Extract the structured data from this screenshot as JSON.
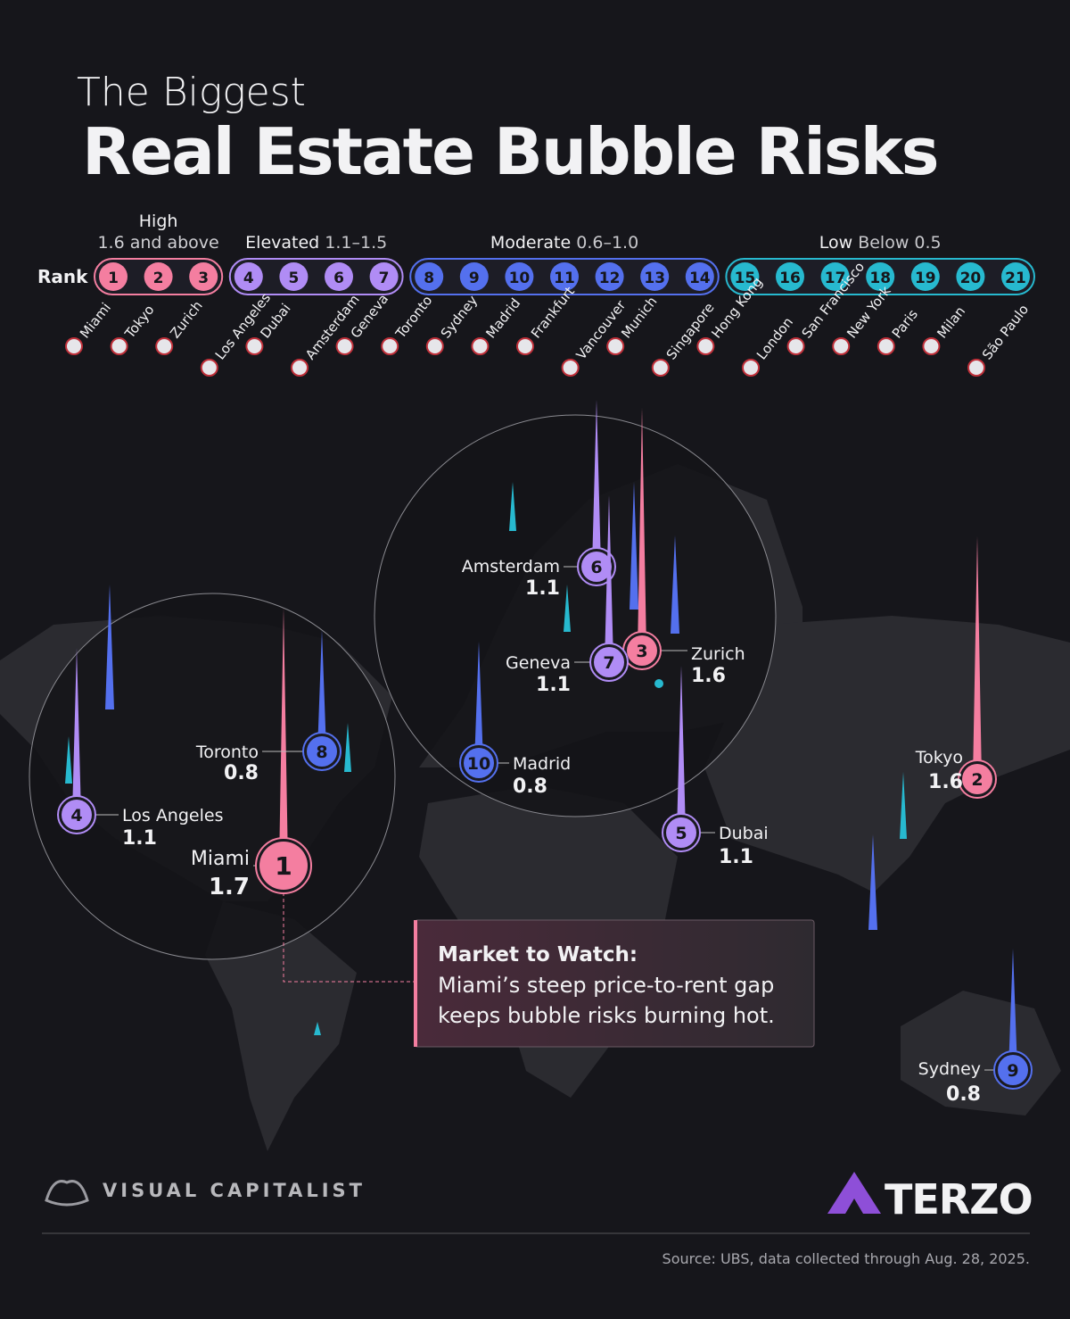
{
  "header": {
    "kicker": "The Biggest",
    "title": "Real Estate Bubble Risks"
  },
  "legend": {
    "rank_label": "Rank",
    "tiers": [
      {
        "name": "High",
        "range": "1.6 and above",
        "color": "#f47ea0",
        "ranks": [
          1,
          2,
          3
        ]
      },
      {
        "name": "Elevated",
        "range": "1.1–1.5",
        "color": "#b08cf5",
        "ranks": [
          4,
          5,
          6,
          7
        ]
      },
      {
        "name": "Moderate",
        "range": "0.6–1.0",
        "color": "#5470ee",
        "ranks": [
          8,
          9,
          10,
          11,
          12,
          13,
          14
        ]
      },
      {
        "name": "Low",
        "range": "Below 0.5",
        "color": "#27b9cf",
        "ranks": [
          15,
          16,
          17,
          18,
          19,
          20,
          21
        ]
      }
    ],
    "cities": [
      "Miami",
      "Tokyo",
      "Zurich",
      "Los Angeles",
      "Dubai",
      "Amsterdam",
      "Geneva",
      "Toronto",
      "Sydney",
      "Madrid",
      "Frankfurt",
      "Vancouver",
      "Munich",
      "Singapore",
      "Hong Kong",
      "London",
      "San Francisco",
      "New York",
      "Paris",
      "Milan",
      "São Paulo"
    ]
  },
  "callouts": [
    {
      "rank": 1,
      "city": "Miami",
      "score": 1.7
    },
    {
      "rank": 2,
      "city": "Tokyo",
      "score": 1.6
    },
    {
      "rank": 3,
      "city": "Zurich",
      "score": 1.6
    },
    {
      "rank": 4,
      "city": "Los Angeles",
      "score": 1.1
    },
    {
      "rank": 5,
      "city": "Dubai",
      "score": 1.1
    },
    {
      "rank": 6,
      "city": "Amsterdam",
      "score": 1.1
    },
    {
      "rank": 7,
      "city": "Geneva",
      "score": 1.1
    },
    {
      "rank": 8,
      "city": "Toronto",
      "score": 0.8
    },
    {
      "rank": 9,
      "city": "Sydney",
      "score": 0.8
    },
    {
      "rank": 10,
      "city": "Madrid",
      "score": 0.8
    }
  ],
  "note": {
    "title": "Market to Watch:",
    "lines": [
      "Miami’s steep price-to-rent gap",
      "keeps bubble risks burning hot."
    ]
  },
  "branding": {
    "publisher": "VISUAL CAPITALIST",
    "sponsor": "TERZO"
  },
  "source": "Source: UBS, data collected through Aug. 28, 2025."
}
